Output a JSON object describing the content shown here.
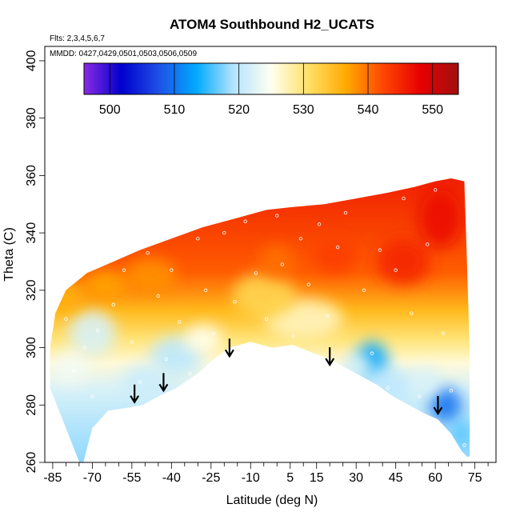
{
  "chart_data": {
    "type": "heatmap",
    "title": "ATOM4 Southbound H2_UCATS",
    "flights_note": "Flts: 2,3,4,5,6,7",
    "dates_note": "MMDD: 0427,0429,0501,0503,0506,0509",
    "xlabel": "Latitude (deg N)",
    "ylabel": "Theta (C)",
    "xlim": [
      -88,
      83
    ],
    "ylim": [
      260,
      405
    ],
    "x_ticks": [
      -85,
      -70,
      -55,
      -40,
      -25,
      -10,
      5,
      15,
      30,
      45,
      60,
      75
    ],
    "y_ticks": [
      260,
      280,
      300,
      320,
      340,
      360,
      380,
      400
    ],
    "colorbar": {
      "min": 496,
      "max": 554,
      "ticks": [
        500,
        510,
        520,
        530,
        540,
        550
      ],
      "colors": [
        "#8a2be2",
        "#0000cd",
        "#1e50e6",
        "#00aaff",
        "#b4e4ff",
        "#fffff0",
        "#ffe066",
        "#ffaa00",
        "#ff4500",
        "#e60000",
        "#a01010"
      ]
    },
    "outline_lower": [
      [
        -74,
        258
      ],
      [
        -70,
        272
      ],
      [
        -64,
        278
      ],
      [
        -57,
        279
      ],
      [
        -51,
        280
      ],
      [
        -45,
        283
      ],
      [
        -38,
        286
      ],
      [
        -30,
        291
      ],
      [
        -24,
        296
      ],
      [
        -18,
        300
      ],
      [
        -10,
        302
      ],
      [
        -2,
        300
      ],
      [
        6,
        301
      ],
      [
        14,
        298
      ],
      [
        20,
        296
      ],
      [
        26,
        293
      ],
      [
        32,
        290
      ],
      [
        38,
        287
      ],
      [
        44,
        283
      ],
      [
        50,
        280
      ],
      [
        56,
        277
      ],
      [
        61,
        275
      ],
      [
        66,
        270
      ],
      [
        70,
        264
      ],
      [
        72,
        262
      ]
    ],
    "outline_upper": [
      [
        -86,
        286
      ],
      [
        -86,
        300
      ],
      [
        -84,
        312
      ],
      [
        -80,
        320
      ],
      [
        -72,
        326
      ],
      [
        -62,
        330
      ],
      [
        -52,
        334
      ],
      [
        -40,
        338
      ],
      [
        -28,
        342
      ],
      [
        -16,
        345
      ],
      [
        -4,
        348
      ],
      [
        6,
        349
      ],
      [
        18,
        350
      ],
      [
        30,
        352
      ],
      [
        42,
        354
      ],
      [
        52,
        356
      ],
      [
        60,
        358
      ],
      [
        66,
        359
      ],
      [
        71,
        358
      ],
      [
        72,
        330
      ],
      [
        73,
        300
      ],
      [
        73,
        262
      ]
    ],
    "field_blobs": [
      {
        "x": -70,
        "y": 305,
        "sx": 9,
        "sy": 8,
        "a": -8
      },
      {
        "x": -38,
        "y": 297,
        "sx": 10,
        "sy": 7,
        "a": -10
      },
      {
        "x": -50,
        "y": 288,
        "sx": 9,
        "sy": 6,
        "a": -9
      },
      {
        "x": -78,
        "y": 293,
        "sx": 7,
        "sy": 6,
        "a": -6
      },
      {
        "x": -28,
        "y": 303,
        "sx": 7,
        "sy": 5,
        "a": -5
      },
      {
        "x": 36,
        "y": 295,
        "sx": 6,
        "sy": 7,
        "a": -17
      },
      {
        "x": 42,
        "y": 287,
        "sx": 10,
        "sy": 6,
        "a": -10
      },
      {
        "x": 30,
        "y": 293,
        "sx": 6,
        "sy": 5,
        "a": -8
      },
      {
        "x": 64,
        "y": 280,
        "sx": 6,
        "sy": 6,
        "a": -20
      },
      {
        "x": 70,
        "y": 270,
        "sx": 4,
        "sy": 5,
        "a": -14
      },
      {
        "x": 56,
        "y": 288,
        "sx": 6,
        "sy": 5,
        "a": -8
      },
      {
        "x": 10,
        "y": 310,
        "sx": 15,
        "sy": 7,
        "a": -3
      },
      {
        "x": -5,
        "y": 318,
        "sx": 12,
        "sy": 8,
        "a": 2
      },
      {
        "x": 48,
        "y": 330,
        "sx": 10,
        "sy": 8,
        "a": 15
      },
      {
        "x": 62,
        "y": 345,
        "sx": 8,
        "sy": 10,
        "a": 17
      },
      {
        "x": 22,
        "y": 332,
        "sx": 8,
        "sy": 6,
        "a": 13
      },
      {
        "x": 0,
        "y": 330,
        "sx": 7,
        "sy": 6,
        "a": 10
      },
      {
        "x": -48,
        "y": 325,
        "sx": 10,
        "sy": 6,
        "a": 8
      },
      {
        "x": -80,
        "y": 318,
        "sx": 7,
        "sy": 5,
        "a": 6
      },
      {
        "x": -65,
        "y": 322,
        "sx": 8,
        "sy": 5,
        "a": 7
      }
    ],
    "arrows_lat": [
      -54,
      -43,
      -18,
      20,
      61
    ],
    "arrows_theta_tip": [
      281,
      285,
      297,
      294,
      277
    ],
    "sample_points": [
      [
        -84,
        318
      ],
      [
        -80,
        310
      ],
      [
        -77,
        292
      ],
      [
        -73,
        300
      ],
      [
        -70,
        283
      ],
      [
        -68,
        306
      ],
      [
        -66,
        275
      ],
      [
        -62,
        315
      ],
      [
        -58,
        327
      ],
      [
        -55,
        302
      ],
      [
        -52,
        288
      ],
      [
        -49,
        333
      ],
      [
        -45,
        318
      ],
      [
        -42,
        296
      ],
      [
        -40,
        327
      ],
      [
        -37,
        309
      ],
      [
        -33,
        291
      ],
      [
        -30,
        338
      ],
      [
        -27,
        320
      ],
      [
        -24,
        305
      ],
      [
        -20,
        340
      ],
      [
        -16,
        316
      ],
      [
        -12,
        344
      ],
      [
        -8,
        326
      ],
      [
        -4,
        310
      ],
      [
        0,
        346
      ],
      [
        2,
        329
      ],
      [
        6,
        304
      ],
      [
        9,
        338
      ],
      [
        12,
        322
      ],
      [
        16,
        343
      ],
      [
        19,
        311
      ],
      [
        23,
        335
      ],
      [
        26,
        347
      ],
      [
        29,
        290
      ],
      [
        33,
        320
      ],
      [
        36,
        298
      ],
      [
        39,
        334
      ],
      [
        42,
        286
      ],
      [
        45,
        327
      ],
      [
        48,
        352
      ],
      [
        51,
        312
      ],
      [
        54,
        283
      ],
      [
        57,
        336
      ],
      [
        60,
        355
      ],
      [
        63,
        305
      ],
      [
        66,
        285
      ],
      [
        69,
        359
      ],
      [
        71,
        266
      ]
    ]
  }
}
